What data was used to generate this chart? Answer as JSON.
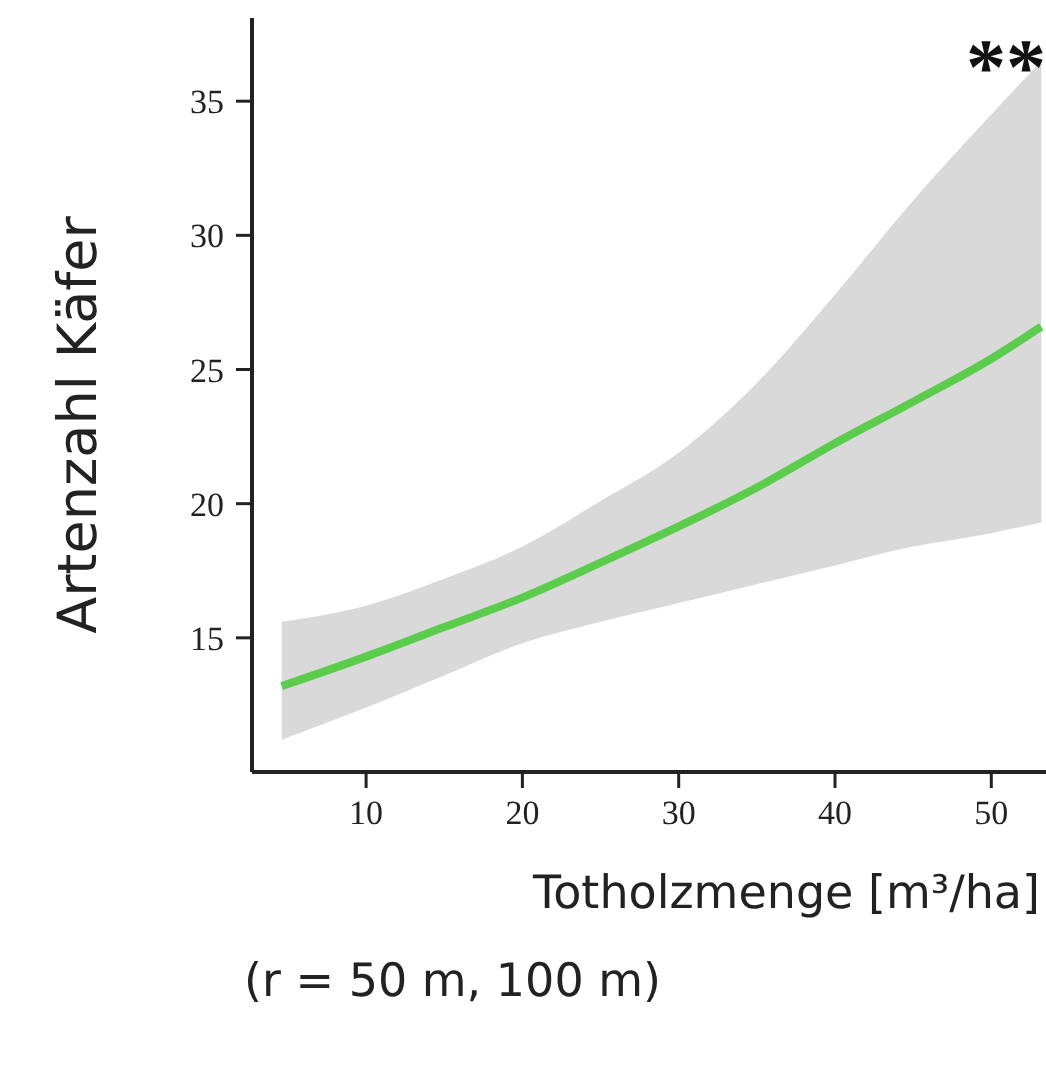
{
  "chart_data": {
    "type": "line",
    "xlabel": "Totholzmenge [m³/ha]\n(r = 50 m, 100 m)",
    "ylabel": "Artenzahl Käfer",
    "annotations": [
      "**"
    ],
    "xlim": [
      2.7,
      53.5
    ],
    "xticks": [
      10,
      20,
      30,
      40,
      50
    ],
    "ylim": [
      10,
      38.1
    ],
    "yticks": [
      15,
      20,
      25,
      30,
      35
    ],
    "series": [
      {
        "color": "#5ccc4c",
        "x": [
          4.6,
          10,
          15,
          20,
          25,
          30,
          35,
          40,
          45,
          50,
          53.2
        ],
        "values": [
          13.2,
          14.3,
          15.4,
          16.5,
          17.8,
          19.15,
          20.6,
          22.25,
          23.8,
          25.4,
          26.6
        ],
        "lower": [
          11.2,
          12.4,
          13.6,
          14.8,
          15.6,
          16.3,
          17.0,
          17.7,
          18.4,
          18.9,
          19.3
        ],
        "upper": [
          15.6,
          16.2,
          17.2,
          18.4,
          20.1,
          21.9,
          24.5,
          27.8,
          31.3,
          34.5,
          36.5
        ]
      }
    ]
  }
}
